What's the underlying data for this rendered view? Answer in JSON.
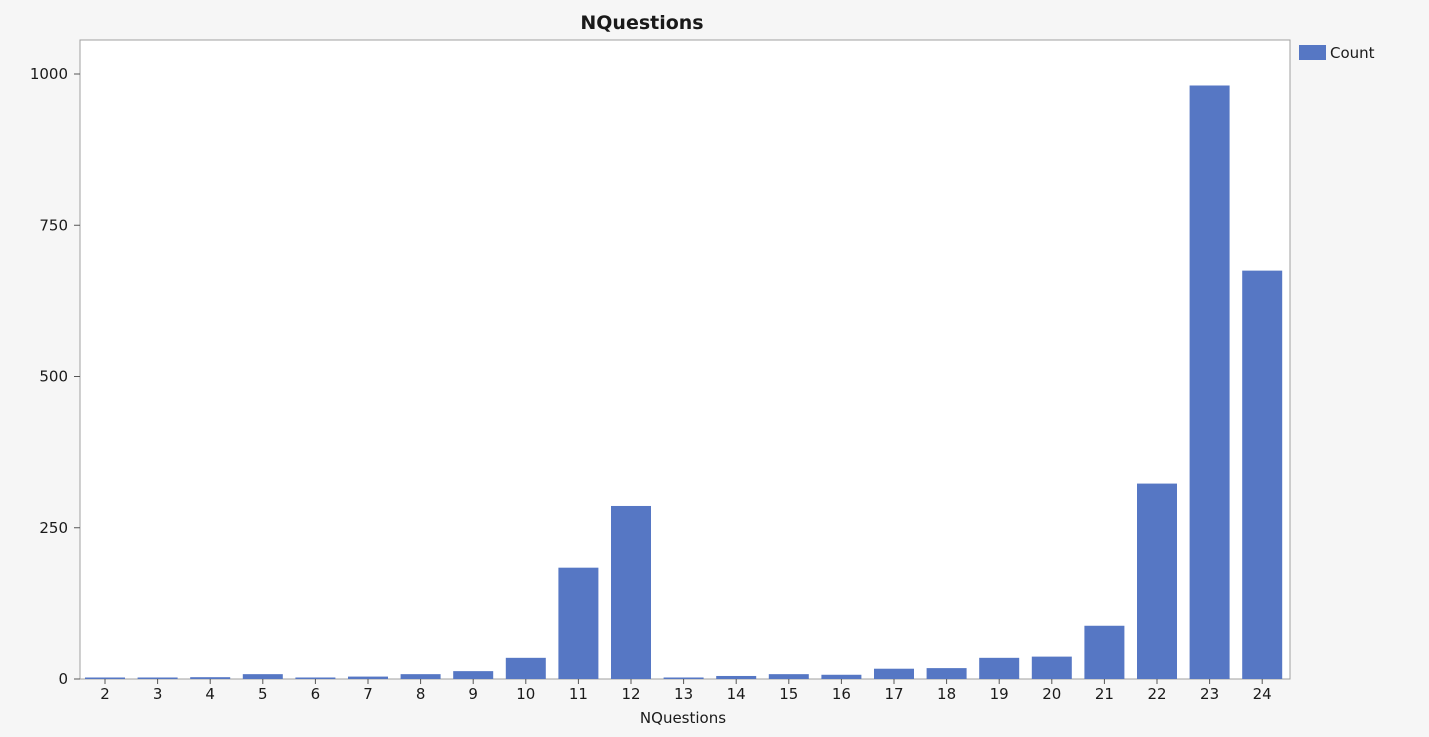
{
  "colors": {
    "bar": "#5677c4",
    "background": "#f6f6f6",
    "plot_background": "#ffffff",
    "frame": "#a0a0a0"
  },
  "chart_data": {
    "type": "bar",
    "title": "NQuestions",
    "xlabel": "NQuestions",
    "ylabel": "",
    "categories": [
      "2",
      "3",
      "4",
      "5",
      "6",
      "7",
      "8",
      "9",
      "10",
      "11",
      "12",
      "13",
      "14",
      "15",
      "16",
      "17",
      "18",
      "19",
      "20",
      "21",
      "22",
      "23",
      "24"
    ],
    "series": [
      {
        "name": "Count",
        "values": [
          1,
          1,
          3,
          8,
          1,
          4,
          8,
          13,
          35,
          184,
          286,
          1,
          5,
          8,
          7,
          17,
          18,
          35,
          37,
          88,
          323,
          981,
          675
        ]
      }
    ],
    "ylim": [
      0,
      1050
    ],
    "yticks": [
      0,
      250,
      500,
      750,
      1000
    ],
    "legend_position": "top-right",
    "grid": false
  }
}
